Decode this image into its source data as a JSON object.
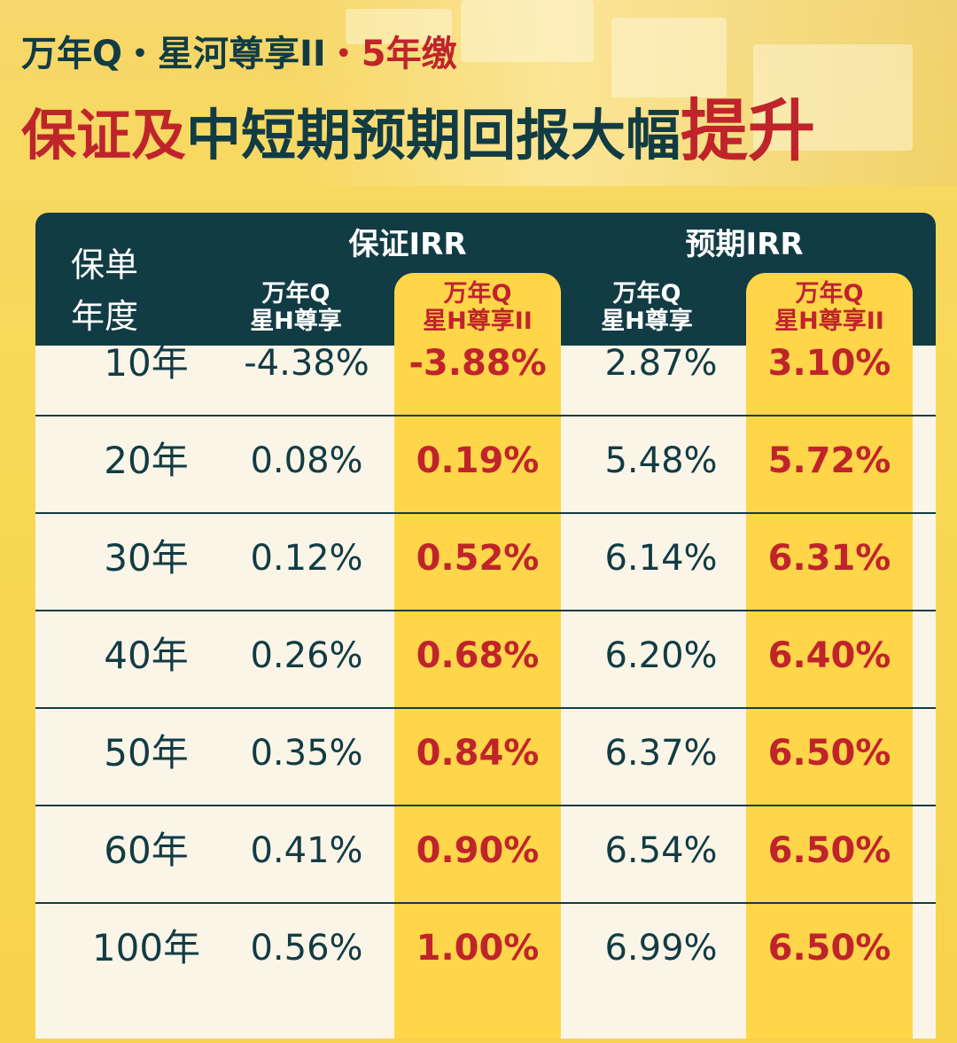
{
  "header": {
    "subtitle_dark": "万年Q・星河尊享II",
    "subtitle_red": "・5年缴",
    "title_red_1": "保证及",
    "title_dark": "中短期预期回报大幅",
    "title_red_2": "提升"
  },
  "chart_data": {
    "type": "table",
    "columns": {
      "year_label": "保单年度",
      "groups": [
        "保证IRR",
        "预期IRR"
      ],
      "products": [
        "万年Q星H尊享",
        "万年Q星H尊享II"
      ]
    },
    "rows": [
      {
        "year": "10年",
        "g_old": "-4.38%",
        "g_new": "-3.88%",
        "e_old": "2.87%",
        "e_new": "3.10%"
      },
      {
        "year": "20年",
        "g_old": "0.08%",
        "g_new": "0.19%",
        "e_old": "5.48%",
        "e_new": "5.72%"
      },
      {
        "year": "30年",
        "g_old": "0.12%",
        "g_new": "0.52%",
        "e_old": "6.14%",
        "e_new": "6.31%"
      },
      {
        "year": "40年",
        "g_old": "0.26%",
        "g_new": "0.68%",
        "e_old": "6.20%",
        "e_new": "6.40%"
      },
      {
        "year": "50年",
        "g_old": "0.35%",
        "g_new": "0.84%",
        "e_old": "6.37%",
        "e_new": "6.50%"
      },
      {
        "year": "60年",
        "g_old": "0.41%",
        "g_new": "0.90%",
        "e_old": "6.54%",
        "e_new": "6.50%"
      },
      {
        "year": "100年",
        "g_old": "0.56%",
        "g_new": "1.00%",
        "e_old": "6.99%",
        "e_new": "6.50%"
      }
    ],
    "colors": {
      "dark": "#123c44",
      "highlight": "#ffd64a",
      "accent": "#c0242b"
    }
  },
  "table_header": {
    "year_line1": "保单",
    "year_line2": "年度",
    "sub_line1": "万年Q",
    "sub_old_line2": "星H尊享",
    "sub_new_line2": "星H尊享II"
  }
}
